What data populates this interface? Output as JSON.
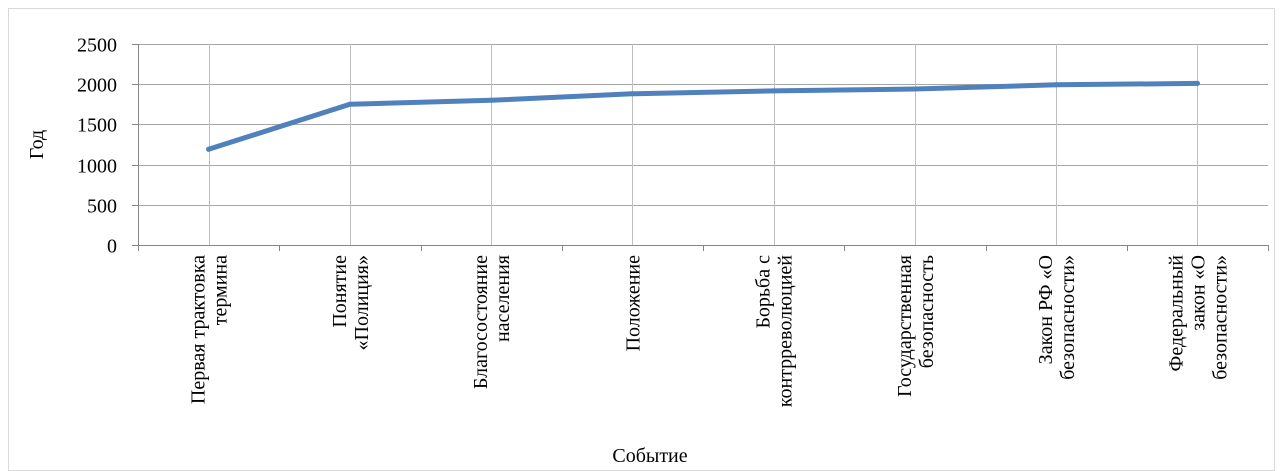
{
  "chart_data": {
    "type": "line",
    "title": "",
    "xlabel": "Событие",
    "ylabel": "Год",
    "ylim": [
      0,
      2500
    ],
    "yticks": [
      0,
      500,
      1000,
      1500,
      2000,
      2500
    ],
    "grid": true,
    "legend": "none",
    "categories": [
      [
        "Первая трактовка",
        "термина"
      ],
      [
        "Понятие",
        "«Полиция»"
      ],
      [
        "Благосостояние",
        "населения"
      ],
      [
        "Положение"
      ],
      [
        "Борьба с",
        "контрреволюцией"
      ],
      [
        "Государственная",
        "безопасность"
      ],
      [
        "Закон РФ «О",
        "безопасности»"
      ],
      [
        "Федеральный",
        "закон «О",
        "безопасности»"
      ]
    ],
    "series": [
      {
        "color": "#4f81bd",
        "values": [
          1190,
          1750,
          1800,
          1880,
          1917,
          1940,
          1992,
          2010
        ]
      }
    ]
  }
}
